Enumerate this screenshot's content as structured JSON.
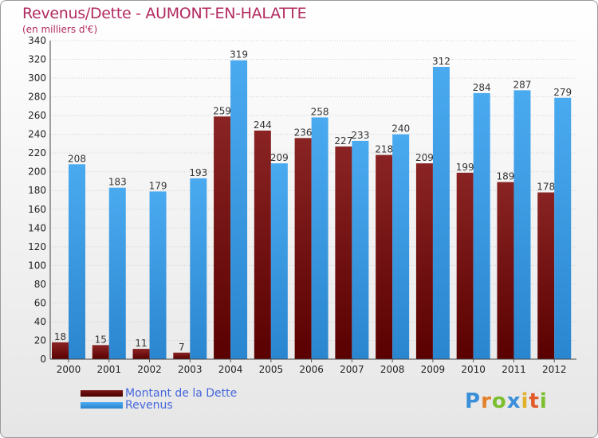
{
  "header": {
    "title": "Revenus/Dette - AUMONT-EN-HALATTE",
    "subtitle": "(en milliers d'€)"
  },
  "legend": {
    "dette_label": "Montant de la Dette",
    "revenus_label": "Revenus"
  },
  "logo": {
    "text": "Proxiti"
  },
  "colors": {
    "title": "#b22a60",
    "dette": "#7a1616",
    "revenus": "#3b9be0",
    "legend_text": "#4466dd"
  },
  "chart_data": {
    "type": "bar",
    "title": "Revenus/Dette - AUMONT-EN-HALATTE",
    "subtitle": "(en milliers d'€)",
    "xlabel": "",
    "ylabel": "",
    "categories": [
      "2000",
      "2001",
      "2002",
      "2003",
      "2004",
      "2005",
      "2006",
      "2007",
      "2008",
      "2009",
      "2010",
      "2011",
      "2012"
    ],
    "series": [
      {
        "name": "Montant de la Dette",
        "values": [
          18,
          15,
          11,
          7,
          259,
          244,
          236,
          227,
          218,
          209,
          199,
          189,
          178
        ]
      },
      {
        "name": "Revenus",
        "values": [
          208,
          183,
          179,
          193,
          319,
          209,
          258,
          233,
          240,
          312,
          284,
          287,
          279
        ]
      }
    ],
    "ylim": [
      0,
      340
    ],
    "yticks": [
      0,
      20,
      40,
      60,
      80,
      100,
      120,
      140,
      160,
      180,
      200,
      220,
      240,
      260,
      280,
      300,
      320,
      340
    ],
    "grid": true,
    "legend_position": "bottom-left"
  }
}
